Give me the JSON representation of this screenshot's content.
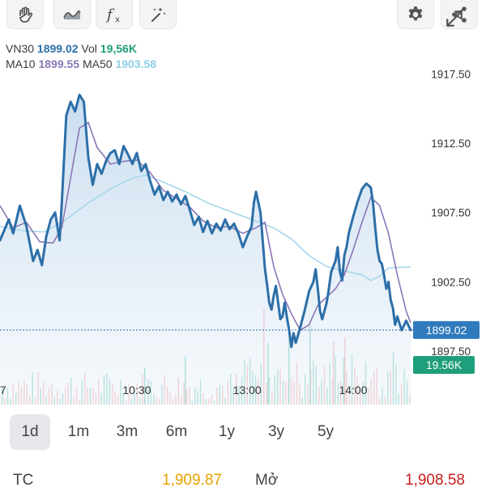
{
  "toolbar": {
    "tools": [
      "hand-icon",
      "line-chart-icon",
      "function-icon",
      "magic-wand-icon"
    ],
    "actions": [
      "gear-icon",
      "share-icon"
    ]
  },
  "info": {
    "symbol": "VN30",
    "price": "1899.02",
    "vol_label": "Vol",
    "vol": "19,56K",
    "ma10_label": "MA10",
    "ma10": "1899.55",
    "ma50_label": "MA50",
    "ma50": "1903.58"
  },
  "colors": {
    "price_line": "#2c6fa8",
    "ma10": "#8a76b6",
    "ma50": "#a6d7ec",
    "area": "#d8e8f5",
    "vol_up": "#5cc4ac",
    "vol_down": "#f19a9a",
    "tag_price": "#2f7bbd",
    "tag_vol": "#1f9e7b",
    "ref": "#e8a200",
    "down": "#c81e1e"
  },
  "chart_data": {
    "type": "line",
    "x_ticks": [
      {
        "t": 0,
        "label": "7"
      },
      {
        "t": 0.31,
        "label": "10:30"
      },
      {
        "t": 0.56,
        "label": "13:00"
      },
      {
        "t": 0.8,
        "label": "14:00"
      }
    ],
    "ylim": [
      1893.64,
      1920.51
    ],
    "y_ticks": [
      "1917.50",
      "1912.50",
      "1907.50",
      "1902.50",
      "1897.50"
    ],
    "price_tag": "1899.02",
    "volume_tag": "19.56K",
    "series": [
      {
        "role": "price",
        "points": [
          [
            0,
            1905.5
          ],
          [
            0.02,
            1907.0
          ],
          [
            0.03,
            1906.0
          ],
          [
            0.045,
            1908.0
          ],
          [
            0.06,
            1906.5
          ],
          [
            0.075,
            1904.0
          ],
          [
            0.085,
            1904.8
          ],
          [
            0.095,
            1903.7
          ],
          [
            0.105,
            1905.8
          ],
          [
            0.115,
            1907.0
          ],
          [
            0.125,
            1907.5
          ],
          [
            0.135,
            1905.5
          ],
          [
            0.14,
            1908.2
          ],
          [
            0.15,
            1914.5
          ],
          [
            0.16,
            1915.5
          ],
          [
            0.17,
            1914.8
          ],
          [
            0.18,
            1916.0
          ],
          [
            0.19,
            1915.5
          ],
          [
            0.2,
            1911.5
          ],
          [
            0.21,
            1909.5
          ],
          [
            0.22,
            1911.0
          ],
          [
            0.23,
            1910.3
          ],
          [
            0.24,
            1911.2
          ],
          [
            0.25,
            1911.8
          ],
          [
            0.26,
            1912.0
          ],
          [
            0.27,
            1911.0
          ],
          [
            0.28,
            1912.3
          ],
          [
            0.29,
            1911.7
          ],
          [
            0.3,
            1911.0
          ],
          [
            0.31,
            1911.8
          ],
          [
            0.32,
            1910.5
          ],
          [
            0.33,
            1911.0
          ],
          [
            0.34,
            1909.8
          ],
          [
            0.35,
            1908.8
          ],
          [
            0.36,
            1909.4
          ],
          [
            0.37,
            1908.4
          ],
          [
            0.38,
            1909.0
          ],
          [
            0.39,
            1908.3
          ],
          [
            0.4,
            1908.8
          ],
          [
            0.41,
            1908.1
          ],
          [
            0.42,
            1908.7
          ],
          [
            0.43,
            1907.7
          ],
          [
            0.44,
            1906.6
          ],
          [
            0.45,
            1907.2
          ],
          [
            0.46,
            1906.1
          ],
          [
            0.47,
            1906.9
          ],
          [
            0.48,
            1906.0
          ],
          [
            0.49,
            1906.7
          ],
          [
            0.5,
            1906.2
          ],
          [
            0.51,
            1907.0
          ],
          [
            0.52,
            1906.3
          ],
          [
            0.53,
            1906.7
          ],
          [
            0.54,
            1906.0
          ],
          [
            0.55,
            1905.0
          ],
          [
            0.56,
            1905.8
          ],
          [
            0.57,
            1906.5
          ],
          [
            0.575,
            1908.2
          ],
          [
            0.58,
            1909.0
          ],
          [
            0.59,
            1907.5
          ],
          [
            0.6,
            1903.5
          ],
          [
            0.605,
            1902.3
          ],
          [
            0.61,
            1901.0
          ],
          [
            0.615,
            1900.5
          ],
          [
            0.62,
            1901.5
          ],
          [
            0.625,
            1902.2
          ],
          [
            0.63,
            1901.0
          ],
          [
            0.635,
            1899.8
          ],
          [
            0.64,
            1900.0
          ],
          [
            0.645,
            1901.0
          ],
          [
            0.65,
            1899.9
          ],
          [
            0.655,
            1899.0
          ],
          [
            0.66,
            1897.8
          ],
          [
            0.665,
            1898.8
          ],
          [
            0.67,
            1898.1
          ],
          [
            0.68,
            1899.2
          ],
          [
            0.69,
            1900.4
          ],
          [
            0.7,
            1901.8
          ],
          [
            0.71,
            1902.5
          ],
          [
            0.715,
            1903.4
          ],
          [
            0.72,
            1902.0
          ],
          [
            0.725,
            1900.4
          ],
          [
            0.73,
            1899.8
          ],
          [
            0.74,
            1901.0
          ],
          [
            0.745,
            1902.0
          ],
          [
            0.75,
            1903.2
          ],
          [
            0.76,
            1904.0
          ],
          [
            0.765,
            1905.0
          ],
          [
            0.77,
            1903.2
          ],
          [
            0.775,
            1902.6
          ],
          [
            0.78,
            1904.4
          ],
          [
            0.785,
            1905.0
          ],
          [
            0.79,
            1906.0
          ],
          [
            0.8,
            1907.2
          ],
          [
            0.81,
            1908.3
          ],
          [
            0.82,
            1909.2
          ],
          [
            0.83,
            1909.6
          ],
          [
            0.84,
            1909.3
          ],
          [
            0.845,
            1908.2
          ],
          [
            0.85,
            1906.4
          ],
          [
            0.855,
            1904.8
          ],
          [
            0.86,
            1904.0
          ],
          [
            0.865,
            1903.8
          ],
          [
            0.87,
            1903.0
          ],
          [
            0.875,
            1902.0
          ],
          [
            0.88,
            1902.5
          ],
          [
            0.885,
            1901.2
          ],
          [
            0.89,
            1900.6
          ],
          [
            0.895,
            1899.4
          ],
          [
            0.9,
            1900.0
          ],
          [
            0.91,
            1899.0
          ],
          [
            0.92,
            1899.7
          ],
          [
            0.93,
            1899.02
          ]
        ]
      },
      {
        "role": "ma10",
        "points": [
          [
            0,
            1908.0
          ],
          [
            0.03,
            1906.4
          ],
          [
            0.06,
            1906.8
          ],
          [
            0.09,
            1905.4
          ],
          [
            0.12,
            1905.3
          ],
          [
            0.14,
            1906.4
          ],
          [
            0.16,
            1910.0
          ],
          [
            0.18,
            1913.6
          ],
          [
            0.2,
            1914.0
          ],
          [
            0.22,
            1912.2
          ],
          [
            0.25,
            1911.0
          ],
          [
            0.28,
            1911.2
          ],
          [
            0.31,
            1911.3
          ],
          [
            0.34,
            1910.4
          ],
          [
            0.37,
            1909.1
          ],
          [
            0.4,
            1908.5
          ],
          [
            0.43,
            1907.9
          ],
          [
            0.46,
            1906.9
          ],
          [
            0.49,
            1906.4
          ],
          [
            0.52,
            1906.5
          ],
          [
            0.55,
            1906.0
          ],
          [
            0.58,
            1906.4
          ],
          [
            0.6,
            1906.8
          ],
          [
            0.62,
            1903.6
          ],
          [
            0.64,
            1901.6
          ],
          [
            0.66,
            1900.2
          ],
          [
            0.68,
            1899.0
          ],
          [
            0.7,
            1899.4
          ],
          [
            0.72,
            1900.8
          ],
          [
            0.74,
            1901.4
          ],
          [
            0.76,
            1902.0
          ],
          [
            0.78,
            1903.0
          ],
          [
            0.8,
            1904.8
          ],
          [
            0.82,
            1906.8
          ],
          [
            0.84,
            1908.6
          ],
          [
            0.86,
            1908.0
          ],
          [
            0.88,
            1906.0
          ],
          [
            0.9,
            1903.0
          ],
          [
            0.92,
            1900.4
          ],
          [
            0.93,
            1899.55
          ]
        ]
      },
      {
        "role": "ma50",
        "points": [
          [
            0,
            1906.5
          ],
          [
            0.05,
            1906.2
          ],
          [
            0.1,
            1906.1
          ],
          [
            0.15,
            1907.0
          ],
          [
            0.2,
            1908.2
          ],
          [
            0.25,
            1909.2
          ],
          [
            0.3,
            1910.0
          ],
          [
            0.33,
            1910.2
          ],
          [
            0.37,
            1909.7
          ],
          [
            0.42,
            1909.0
          ],
          [
            0.47,
            1908.2
          ],
          [
            0.52,
            1907.6
          ],
          [
            0.57,
            1907.0
          ],
          [
            0.62,
            1906.4
          ],
          [
            0.66,
            1905.6
          ],
          [
            0.7,
            1904.4
          ],
          [
            0.74,
            1903.6
          ],
          [
            0.78,
            1903.3
          ],
          [
            0.82,
            1903.0
          ],
          [
            0.84,
            1902.6
          ],
          [
            0.86,
            1902.9
          ],
          [
            0.88,
            1903.5
          ],
          [
            0.93,
            1903.58
          ]
        ]
      }
    ]
  },
  "ranges": [
    "1d",
    "1m",
    "3m",
    "6m",
    "1y",
    "3y",
    "5y"
  ],
  "active_range": "1d",
  "bottom": {
    "tc_label": "TC",
    "tc_value": "1,909.87",
    "open_label": "Mở",
    "open_value": "1,908.58"
  }
}
